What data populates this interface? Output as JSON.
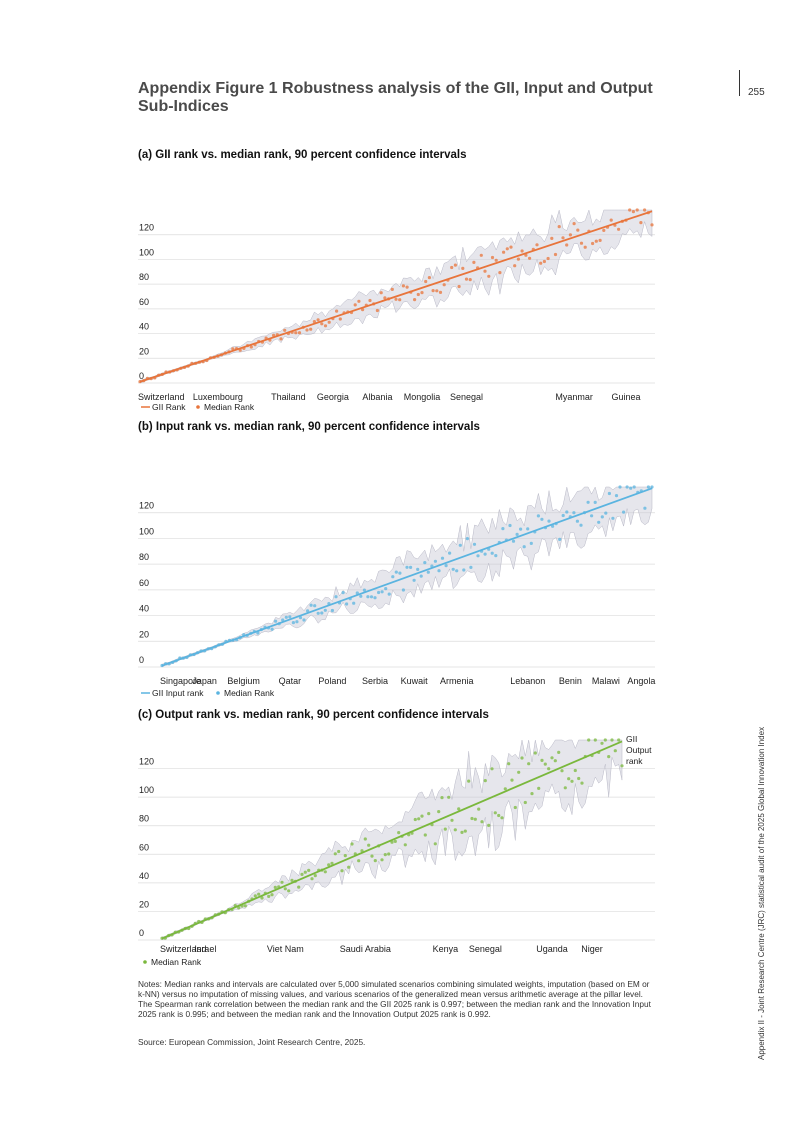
{
  "page": {
    "number": "255",
    "side_text": "Appendix II - Joint Research Centre (JRC) statistical audit of the 2025 Global Innovation Index",
    "title": "Appendix Figure 1 Robustness analysis of the GII, Input and Output Sub-Indices",
    "notes": "Notes: Median ranks and intervals are calculated over 5,000 simulated scenarios combining simulated weights, imputation (based on EM or k-NN) versus no imputation of missing values, and various scenarios of the generalized mean versus arithmetic average at the pillar level. The Spearman rank correlation between the median rank and the GII 2025 rank is 0.997; between the median rank and the Innovation Input 2025 rank is 0.995; and between the median rank and the Innovation Output 2025 rank is 0.992.",
    "source": "Source: European Commission, Joint Research Centre, 2025."
  },
  "colors": {
    "gii": "#e8743b",
    "input": "#5ab4e0",
    "output": "#7ab83c",
    "band": "#c8c8d4",
    "grid": "#dcdcdc"
  },
  "chart_data": [
    {
      "type": "line",
      "title": "(a) GII rank vs. median rank, 90 percent confidence intervals",
      "x_count": 139,
      "ylim": [
        0,
        140
      ],
      "yticks": [
        "0",
        "20",
        "40",
        "60",
        "80",
        "100",
        "120"
      ],
      "category_labels": [
        {
          "label": "Switzerland",
          "index": 1
        },
        {
          "label": "Luxembourg",
          "index": 22
        },
        {
          "label": "Thailand",
          "index": 41
        },
        {
          "label": "Georgia",
          "index": 53
        },
        {
          "label": "Albania",
          "index": 65
        },
        {
          "label": "Mongolia",
          "index": 77
        },
        {
          "label": "Senegal",
          "index": 89
        },
        {
          "label": "Myanmar",
          "index": 118
        },
        {
          "label": "Guinea",
          "index": 132
        }
      ],
      "series": [
        {
          "name": "GII Rank",
          "values": "rank 1 to 139 (identity line)"
        },
        {
          "name": "Median Rank",
          "values": "approximately equal to GII rank; deviations of up to about ±12 ranks from rank 60 onward"
        }
      ],
      "legend": [
        "GII Rank",
        "Median Rank"
      ],
      "confidence_interval": "90 percent, shaded band widening from about ±1 (top ranks) to about ±15 (lower ranks)"
    },
    {
      "type": "line",
      "title": "(b) Input rank vs. median rank, 90 percent confidence intervals",
      "x_count": 139,
      "ylim": [
        0,
        140
      ],
      "yticks": [
        "0",
        "20",
        "40",
        "60",
        "80",
        "100",
        "120"
      ],
      "category_labels": [
        {
          "label": "Singapore",
          "index": 1
        },
        {
          "label": "Japan",
          "index": 13
        },
        {
          "label": "Belgium",
          "index": 24
        },
        {
          "label": "Qatar",
          "index": 37
        },
        {
          "label": "Poland",
          "index": 49
        },
        {
          "label": "Serbia",
          "index": 61
        },
        {
          "label": "Kuwait",
          "index": 72
        },
        {
          "label": "Armenia",
          "index": 84
        },
        {
          "label": "Lebanon",
          "index": 104
        },
        {
          "label": "Benin",
          "index": 116
        },
        {
          "label": "Malawi",
          "index": 126
        },
        {
          "label": "Angola",
          "index": 136
        }
      ],
      "series": [
        {
          "name": "GII Input rank",
          "values": "rank 1 to 139 (identity line)"
        },
        {
          "name": "Median Rank",
          "values": "approximately equal to input rank; deviations of up to about ±15 ranks in the middle range"
        }
      ],
      "legend": [
        "GII Input rank",
        "Median Rank"
      ],
      "confidence_interval": "90 percent, shaded band widening from about ±1 to about ±18"
    },
    {
      "type": "line",
      "title": "(c) Output rank vs. median rank, 90 percent confidence intervals",
      "x_count": 139,
      "ylim": [
        0,
        140
      ],
      "yticks": [
        "0",
        "20",
        "40",
        "60",
        "80",
        "100",
        "120"
      ],
      "category_labels": [
        {
          "label": "Switzerland",
          "index": 1
        },
        {
          "label": "Israel",
          "index": 14
        },
        {
          "label": "Viet Nam",
          "index": 38
        },
        {
          "label": "Saudi Arabia",
          "index": 62
        },
        {
          "label": "Kenya",
          "index": 86
        },
        {
          "label": "Senegal",
          "index": 98
        },
        {
          "label": "Uganda",
          "index": 118
        },
        {
          "label": "Niger",
          "index": 130
        }
      ],
      "series": [
        {
          "name": "GII Output rank",
          "values": "rank 1 to 139 (identity line)"
        },
        {
          "name": "Median Rank",
          "values": "approximately equal to output rank; deviations of up to about ±20 ranks in the middle and lower range"
        }
      ],
      "legend": [
        "Median Rank"
      ],
      "line_label": [
        "GII",
        "Output",
        "rank"
      ],
      "confidence_interval": "90 percent, shaded band widening from about ±1 to about ±22"
    }
  ]
}
